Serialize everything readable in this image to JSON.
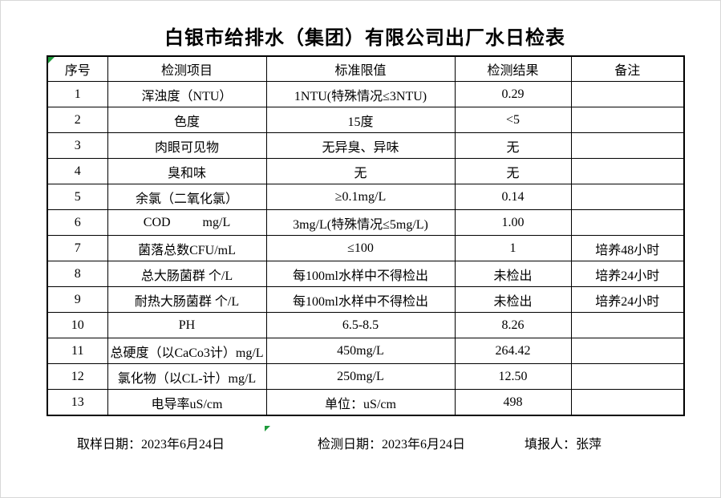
{
  "title": "白银市给排水（集团）有限公司出厂水日检表",
  "colors": {
    "flag_triangle_green": "#1e9b3b",
    "table_border": "#000000",
    "background": "#ffffff"
  },
  "table": {
    "headers": [
      "序号",
      "检测项目",
      "标准限值",
      "检测结果",
      "备注"
    ],
    "rows": [
      {
        "no": "1",
        "item": "浑浊度（NTU）",
        "limit": "1NTU(特殊情况≤3NTU)",
        "result": "0.29",
        "note": ""
      },
      {
        "no": "2",
        "item": "色度",
        "limit": "15度",
        "result": "<5",
        "note": ""
      },
      {
        "no": "3",
        "item": "肉眼可见物",
        "limit": "无异臭、异味",
        "result": "无",
        "note": ""
      },
      {
        "no": "4",
        "item": "臭和味",
        "limit": "无",
        "result": "无",
        "note": ""
      },
      {
        "no": "5",
        "item": "余氯（二氧化氯）",
        "limit": "≥0.1mg/L",
        "result": "0.14",
        "note": ""
      },
      {
        "no": "6",
        "item": "COD          mg/L",
        "limit": "3mg/L(特殊情况≤5mg/L)",
        "result": "1.00",
        "note": ""
      },
      {
        "no": "7",
        "item": "菌落总数CFU/mL",
        "limit": "≤100",
        "result": "1",
        "note": "培养48小时"
      },
      {
        "no": "8",
        "item": "总大肠菌群 个/L",
        "limit": "每100ml水样中不得检出",
        "result": "未检出",
        "note": "培养24小时"
      },
      {
        "no": "9",
        "item": "耐热大肠菌群 个/L",
        "limit": "每100ml水样中不得检出",
        "result": "未检出",
        "note": "培养24小时"
      },
      {
        "no": "10",
        "item": "PH",
        "limit": "6.5-8.5",
        "result": "8.26",
        "note": ""
      },
      {
        "no": "11",
        "item": "总硬度（以CaCo3计）mg/L",
        "limit": "450mg/L",
        "result": "264.42",
        "note": ""
      },
      {
        "no": "12",
        "item": "氯化物（以CL-计）mg/L",
        "limit": "250mg/L",
        "result": "12.50",
        "note": ""
      },
      {
        "no": "13",
        "item": "电导率uS/cm",
        "limit": "单位：uS/cm",
        "result": "498",
        "note": ""
      }
    ]
  },
  "footer": {
    "sample_date": "取样日期：2023年6月24日",
    "test_date": "检测日期：2023年6月24日",
    "reporter": "填报人：张萍"
  }
}
